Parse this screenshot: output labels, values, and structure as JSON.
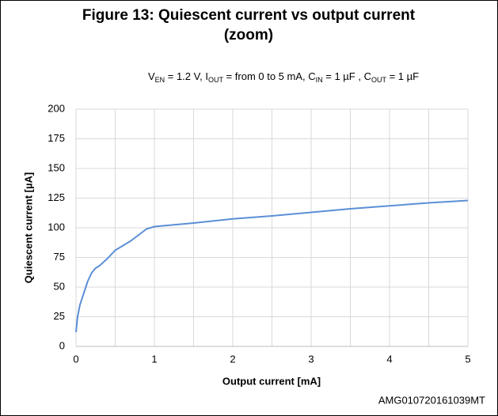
{
  "chart_data": {
    "type": "line",
    "title_lines": [
      "Figure 13: Quiescent current vs output current",
      "(zoom)"
    ],
    "subtitle_parts": [
      "V",
      "EN",
      " = 1.2 V, I",
      "OUT",
      " = from 0 to 5 mA, C",
      "IN",
      " = 1 µF , C",
      "OUT",
      " = 1 µF"
    ],
    "x_label": "Output current [mA]",
    "y_label": "Quiescent current [µA]",
    "footer": "AMG010720161039MT",
    "xlim": [
      0,
      5
    ],
    "xticks": [
      0,
      1,
      2,
      3,
      4,
      5
    ],
    "x_minor_grid": [
      0.5,
      1.5,
      2.5,
      3.5,
      4.5
    ],
    "ylim": [
      0,
      200
    ],
    "yticks": [
      0,
      25,
      50,
      75,
      100,
      125,
      150,
      175,
      200
    ],
    "grid": true,
    "series": [
      {
        "name": "Quiescent current",
        "color": "#5b8fd6",
        "x": [
          0,
          0.02,
          0.05,
          0.1,
          0.15,
          0.2,
          0.25,
          0.3,
          0.4,
          0.5,
          0.6,
          0.7,
          0.8,
          0.9,
          1,
          1.5,
          2,
          2.5,
          3,
          3.5,
          4,
          4.5,
          5
        ],
        "values": [
          12,
          25,
          35,
          45,
          55,
          62,
          66,
          68,
          74,
          81,
          85,
          89,
          94,
          99,
          101,
          104,
          107.5,
          110,
          113,
          116,
          118.5,
          121,
          123
        ]
      }
    ]
  }
}
